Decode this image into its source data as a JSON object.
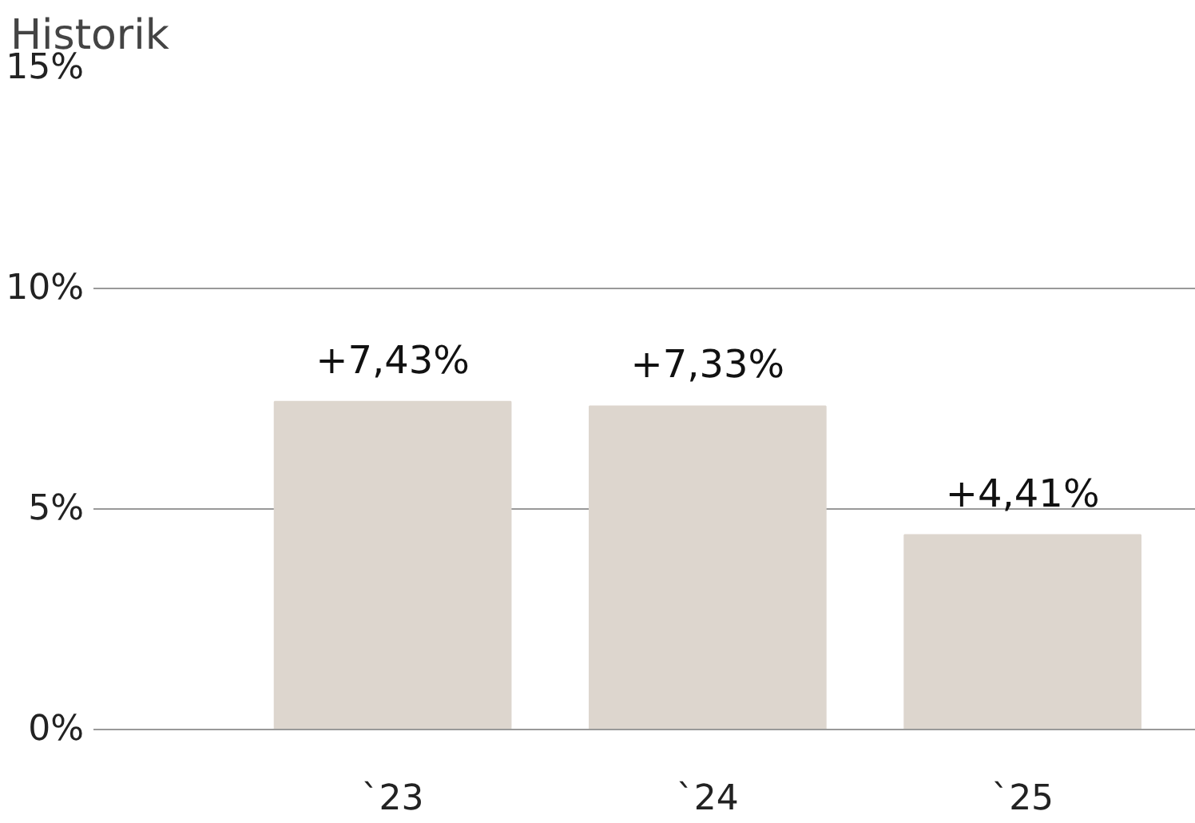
{
  "chart_data": {
    "type": "bar",
    "title": "Historik",
    "categories": [
      "`23",
      "`24",
      "`25"
    ],
    "values": [
      7.43,
      7.33,
      4.41
    ],
    "color": "#ddd6ce",
    "value_labels": [
      "+7,43%",
      "+7,33%",
      "+4,41%"
    ],
    "ylim": [
      0,
      15
    ],
    "yticks": [
      {
        "value": 0,
        "label": "0%"
      },
      {
        "value": 5,
        "label": "5%"
      },
      {
        "value": 10,
        "label": "10%"
      },
      {
        "value": 15,
        "label": "15%"
      }
    ],
    "grid": "y"
  }
}
